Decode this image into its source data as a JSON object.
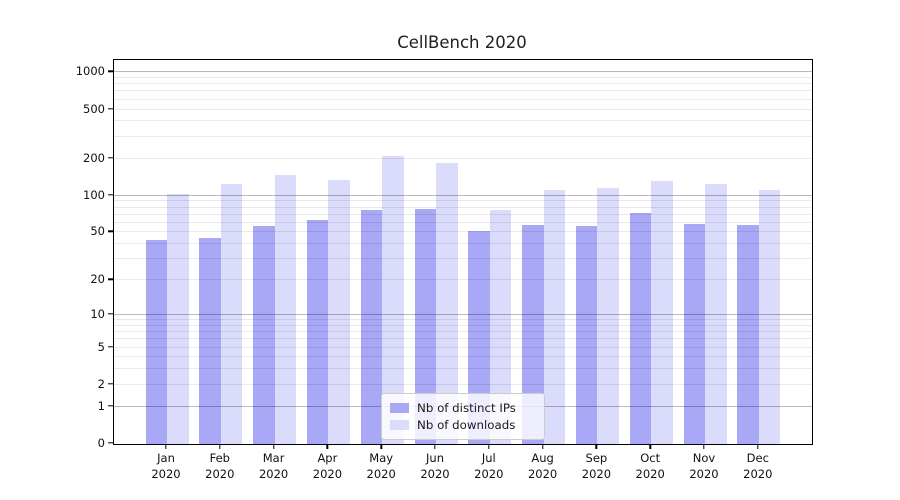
{
  "chart_data": {
    "type": "bar",
    "title": "CellBench 2020",
    "categories": [
      "Jan",
      "Feb",
      "Mar",
      "Apr",
      "May",
      "Jun",
      "Jul",
      "Aug",
      "Sep",
      "Oct",
      "Nov",
      "Dec"
    ],
    "year_label": "2020",
    "series": [
      {
        "name": "Nb of distinct IPs",
        "color": "#a8a8f7",
        "values": [
          43,
          45,
          56,
          63,
          76,
          78,
          51,
          58,
          56,
          72,
          59,
          58
        ]
      },
      {
        "name": "Nb of downloads",
        "color": "#dbdbfb",
        "values": [
          104,
          124,
          147,
          135,
          210,
          184,
          76,
          111,
          115,
          131,
          125,
          111
        ]
      }
    ],
    "yscale": "log(value+1)",
    "ylim": [
      0,
      1255
    ],
    "ytick_values": [
      0,
      1,
      2,
      5,
      10,
      20,
      50,
      100,
      200,
      500,
      1000
    ],
    "ytick_labels": [
      "0",
      "1",
      "2",
      "5",
      "10",
      "20",
      "50",
      "100",
      "200",
      "500",
      "1000"
    ],
    "gridlines": {
      "major": [
        1,
        10,
        100,
        1000
      ],
      "minor": [
        2,
        3,
        4,
        5,
        6,
        7,
        8,
        9,
        20,
        30,
        40,
        50,
        60,
        70,
        80,
        90,
        200,
        300,
        400,
        500,
        600,
        700,
        800,
        900
      ]
    },
    "xlabel": "",
    "ylabel": "",
    "grid": true,
    "legend_position": "lower center"
  }
}
